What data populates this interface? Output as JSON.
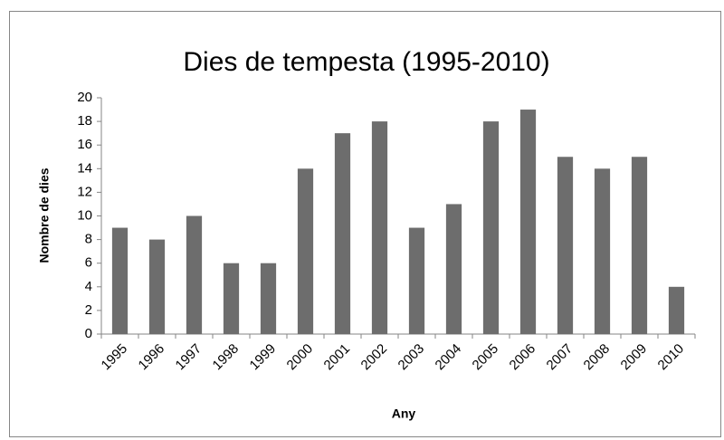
{
  "chart_data": {
    "type": "bar",
    "title": "Dies de tempesta (1995-2010)",
    "x_label": "Any",
    "y_label": "Nombre de dies",
    "categories": [
      "1995",
      "1996",
      "1997",
      "1998",
      "1999",
      "2000",
      "2001",
      "2002",
      "2003",
      "2004",
      "2005",
      "2006",
      "2007",
      "2008",
      "2009",
      "2010"
    ],
    "values": [
      9,
      8,
      10,
      6,
      6,
      14,
      17,
      18,
      9,
      11,
      18,
      19,
      15,
      14,
      15,
      4
    ],
    "color": "#6d6d6d",
    "ylim": [
      0,
      20
    ],
    "yticks": [
      0,
      2,
      4,
      6,
      8,
      10,
      12,
      14,
      16,
      18,
      20
    ],
    "grid": false
  }
}
